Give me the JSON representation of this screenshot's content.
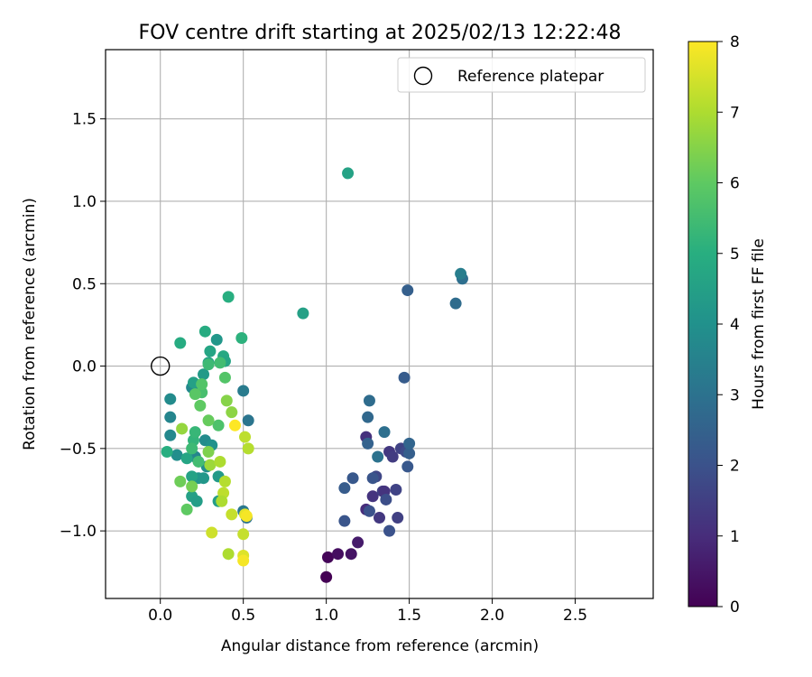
{
  "chart_data": {
    "type": "scatter",
    "title": "FOV centre drift starting at 2025/02/13 12:22:48",
    "xlabel": "Angular distance from reference (arcmin)",
    "ylabel": "Rotation from reference (arcmin)",
    "xlim": [
      -0.33,
      2.97
    ],
    "ylim": [
      -1.41,
      1.92
    ],
    "xticks": [
      "0.0",
      "0.5",
      "1.0",
      "1.5",
      "2.0",
      "2.5"
    ],
    "yticks": [
      "−1.0",
      "−0.5",
      "0.0",
      "0.5",
      "1.0",
      "1.5"
    ],
    "grid": true,
    "legend": {
      "position": "upper right",
      "entries": [
        "Reference platepar"
      ]
    },
    "reference_point": {
      "x": 0.0,
      "y": 0.0
    },
    "colorbar": {
      "label": "Hours from first FF file",
      "range": [
        0,
        8
      ],
      "ticks": [
        "0",
        "1",
        "2",
        "3",
        "4",
        "5",
        "6",
        "7",
        "8"
      ],
      "colormap": "viridis"
    },
    "points": [
      {
        "x": 1.0,
        "y": -1.28,
        "h": 0.0
      },
      {
        "x": 1.01,
        "y": -1.16,
        "h": 0.1
      },
      {
        "x": 1.07,
        "y": -1.14,
        "h": 0.3
      },
      {
        "x": 1.15,
        "y": -1.14,
        "h": 0.4
      },
      {
        "x": 1.19,
        "y": -1.07,
        "h": 0.6
      },
      {
        "x": 1.24,
        "y": -0.87,
        "h": 1.0
      },
      {
        "x": 1.24,
        "y": -0.43,
        "h": 1.1
      },
      {
        "x": 1.28,
        "y": -0.79,
        "h": 1.2
      },
      {
        "x": 1.32,
        "y": -0.92,
        "h": 1.3
      },
      {
        "x": 1.34,
        "y": -0.76,
        "h": 1.5
      },
      {
        "x": 1.35,
        "y": -0.76,
        "h": 1.2
      },
      {
        "x": 1.38,
        "y": -0.52,
        "h": 1.3
      },
      {
        "x": 1.4,
        "y": -0.55,
        "h": 1.4
      },
      {
        "x": 1.42,
        "y": -0.75,
        "h": 1.6
      },
      {
        "x": 1.43,
        "y": -0.92,
        "h": 1.5
      },
      {
        "x": 1.45,
        "y": -0.5,
        "h": 1.6
      },
      {
        "x": 1.48,
        "y": -0.52,
        "h": 1.8
      },
      {
        "x": 1.3,
        "y": -0.67,
        "h": 1.7
      },
      {
        "x": 1.36,
        "y": -0.81,
        "h": 1.9
      },
      {
        "x": 1.38,
        "y": -1.0,
        "h": 2.0
      },
      {
        "x": 1.26,
        "y": -0.88,
        "h": 2.0
      },
      {
        "x": 1.11,
        "y": -0.94,
        "h": 2.1
      },
      {
        "x": 1.11,
        "y": -0.74,
        "h": 2.3
      },
      {
        "x": 1.16,
        "y": -0.68,
        "h": 2.2
      },
      {
        "x": 1.28,
        "y": -0.68,
        "h": 2.1
      },
      {
        "x": 1.49,
        "y": -0.61,
        "h": 2.2
      },
      {
        "x": 1.5,
        "y": -0.53,
        "h": 2.4
      },
      {
        "x": 1.5,
        "y": -0.47,
        "h": 2.6
      },
      {
        "x": 1.47,
        "y": -0.07,
        "h": 2.3
      },
      {
        "x": 1.49,
        "y": 0.46,
        "h": 2.4
      },
      {
        "x": 1.25,
        "y": -0.47,
        "h": 2.5
      },
      {
        "x": 1.25,
        "y": -0.31,
        "h": 2.7
      },
      {
        "x": 1.26,
        "y": -0.21,
        "h": 2.8
      },
      {
        "x": 1.35,
        "y": -0.4,
        "h": 2.9
      },
      {
        "x": 1.31,
        "y": -0.55,
        "h": 3.0
      },
      {
        "x": 1.78,
        "y": 0.38,
        "h": 2.8
      },
      {
        "x": 1.82,
        "y": 0.53,
        "h": 2.9
      },
      {
        "x": 1.81,
        "y": 0.56,
        "h": 3.4
      },
      {
        "x": 0.52,
        "y": -0.92,
        "h": 3.0
      },
      {
        "x": 0.53,
        "y": -0.33,
        "h": 3.1
      },
      {
        "x": 0.5,
        "y": -0.15,
        "h": 3.3
      },
      {
        "x": 0.5,
        "y": -0.88,
        "h": 3.2
      },
      {
        "x": 0.06,
        "y": -0.31,
        "h": 3.6
      },
      {
        "x": 0.06,
        "y": -0.42,
        "h": 3.7
      },
      {
        "x": 0.06,
        "y": -0.2,
        "h": 3.8
      },
      {
        "x": 0.1,
        "y": -0.54,
        "h": 3.9
      },
      {
        "x": 0.21,
        "y": -0.55,
        "h": 3.6
      },
      {
        "x": 0.19,
        "y": -0.13,
        "h": 3.7
      },
      {
        "x": 0.27,
        "y": -0.45,
        "h": 3.8
      },
      {
        "x": 0.28,
        "y": -0.61,
        "h": 3.9
      },
      {
        "x": 0.31,
        "y": -0.48,
        "h": 4.0
      },
      {
        "x": 0.34,
        "y": 0.16,
        "h": 4.2
      },
      {
        "x": 0.23,
        "y": -0.68,
        "h": 4.1
      },
      {
        "x": 0.35,
        "y": -0.67,
        "h": 4.3
      },
      {
        "x": 0.26,
        "y": -0.68,
        "h": 4.2
      },
      {
        "x": 0.35,
        "y": -0.82,
        "h": 4.4
      },
      {
        "x": 0.19,
        "y": -0.79,
        "h": 4.5
      },
      {
        "x": 0.22,
        "y": -0.82,
        "h": 4.4
      },
      {
        "x": 0.19,
        "y": -0.67,
        "h": 4.6
      },
      {
        "x": 0.16,
        "y": -0.56,
        "h": 4.7
      },
      {
        "x": 0.2,
        "y": -0.1,
        "h": 4.5
      },
      {
        "x": 0.26,
        "y": -0.05,
        "h": 4.3
      },
      {
        "x": 0.29,
        "y": 0.02,
        "h": 4.6
      },
      {
        "x": 0.3,
        "y": 0.09,
        "h": 4.7
      },
      {
        "x": 0.38,
        "y": 0.06,
        "h": 4.8
      },
      {
        "x": 0.39,
        "y": 0.03,
        "h": 4.7
      },
      {
        "x": 0.27,
        "y": 0.21,
        "h": 4.9
      },
      {
        "x": 0.41,
        "y": 0.42,
        "h": 5.0
      },
      {
        "x": 0.49,
        "y": 0.17,
        "h": 5.1
      },
      {
        "x": 0.86,
        "y": 0.32,
        "h": 4.5
      },
      {
        "x": 1.13,
        "y": 1.17,
        "h": 4.6
      },
      {
        "x": 0.04,
        "y": -0.52,
        "h": 5.0
      },
      {
        "x": 0.12,
        "y": 0.14,
        "h": 4.9
      },
      {
        "x": 0.2,
        "y": -0.45,
        "h": 5.2
      },
      {
        "x": 0.21,
        "y": -0.4,
        "h": 5.3
      },
      {
        "x": 0.19,
        "y": -0.5,
        "h": 5.4
      },
      {
        "x": 0.23,
        "y": -0.58,
        "h": 5.5
      },
      {
        "x": 0.25,
        "y": -0.16,
        "h": 5.6
      },
      {
        "x": 0.29,
        "y": 0.01,
        "h": 5.4
      },
      {
        "x": 0.36,
        "y": 0.02,
        "h": 5.5
      },
      {
        "x": 0.35,
        "y": -0.36,
        "h": 5.7
      },
      {
        "x": 0.25,
        "y": -0.11,
        "h": 5.8
      },
      {
        "x": 0.21,
        "y": -0.17,
        "h": 5.9
      },
      {
        "x": 0.24,
        "y": -0.24,
        "h": 6.0
      },
      {
        "x": 0.29,
        "y": -0.33,
        "h": 6.1
      },
      {
        "x": 0.12,
        "y": -0.7,
        "h": 6.2
      },
      {
        "x": 0.19,
        "y": -0.73,
        "h": 6.3
      },
      {
        "x": 0.16,
        "y": -0.87,
        "h": 6.0
      },
      {
        "x": 0.29,
        "y": -0.52,
        "h": 6.4
      },
      {
        "x": 0.39,
        "y": -0.07,
        "h": 5.8
      },
      {
        "x": 0.4,
        "y": -0.21,
        "h": 6.5
      },
      {
        "x": 0.43,
        "y": -0.28,
        "h": 6.6
      },
      {
        "x": 0.13,
        "y": -0.38,
        "h": 6.7
      },
      {
        "x": 0.3,
        "y": -0.6,
        "h": 6.8
      },
      {
        "x": 0.36,
        "y": -0.58,
        "h": 7.0
      },
      {
        "x": 0.39,
        "y": -0.7,
        "h": 7.1
      },
      {
        "x": 0.38,
        "y": -0.77,
        "h": 7.2
      },
      {
        "x": 0.37,
        "y": -0.82,
        "h": 7.0
      },
      {
        "x": 0.43,
        "y": -0.9,
        "h": 7.3
      },
      {
        "x": 0.31,
        "y": -1.01,
        "h": 7.4
      },
      {
        "x": 0.51,
        "y": -0.43,
        "h": 7.2
      },
      {
        "x": 0.53,
        "y": -0.5,
        "h": 7.1
      },
      {
        "x": 0.5,
        "y": -1.02,
        "h": 7.3
      },
      {
        "x": 0.41,
        "y": -1.14,
        "h": 7.0
      },
      {
        "x": 0.5,
        "y": -1.15,
        "h": 7.6
      },
      {
        "x": 0.51,
        "y": -0.9,
        "h": 7.7
      },
      {
        "x": 0.45,
        "y": -0.36,
        "h": 8.0
      },
      {
        "x": 0.52,
        "y": -0.91,
        "h": 7.9
      },
      {
        "x": 0.5,
        "y": -1.18,
        "h": 7.9
      }
    ]
  }
}
